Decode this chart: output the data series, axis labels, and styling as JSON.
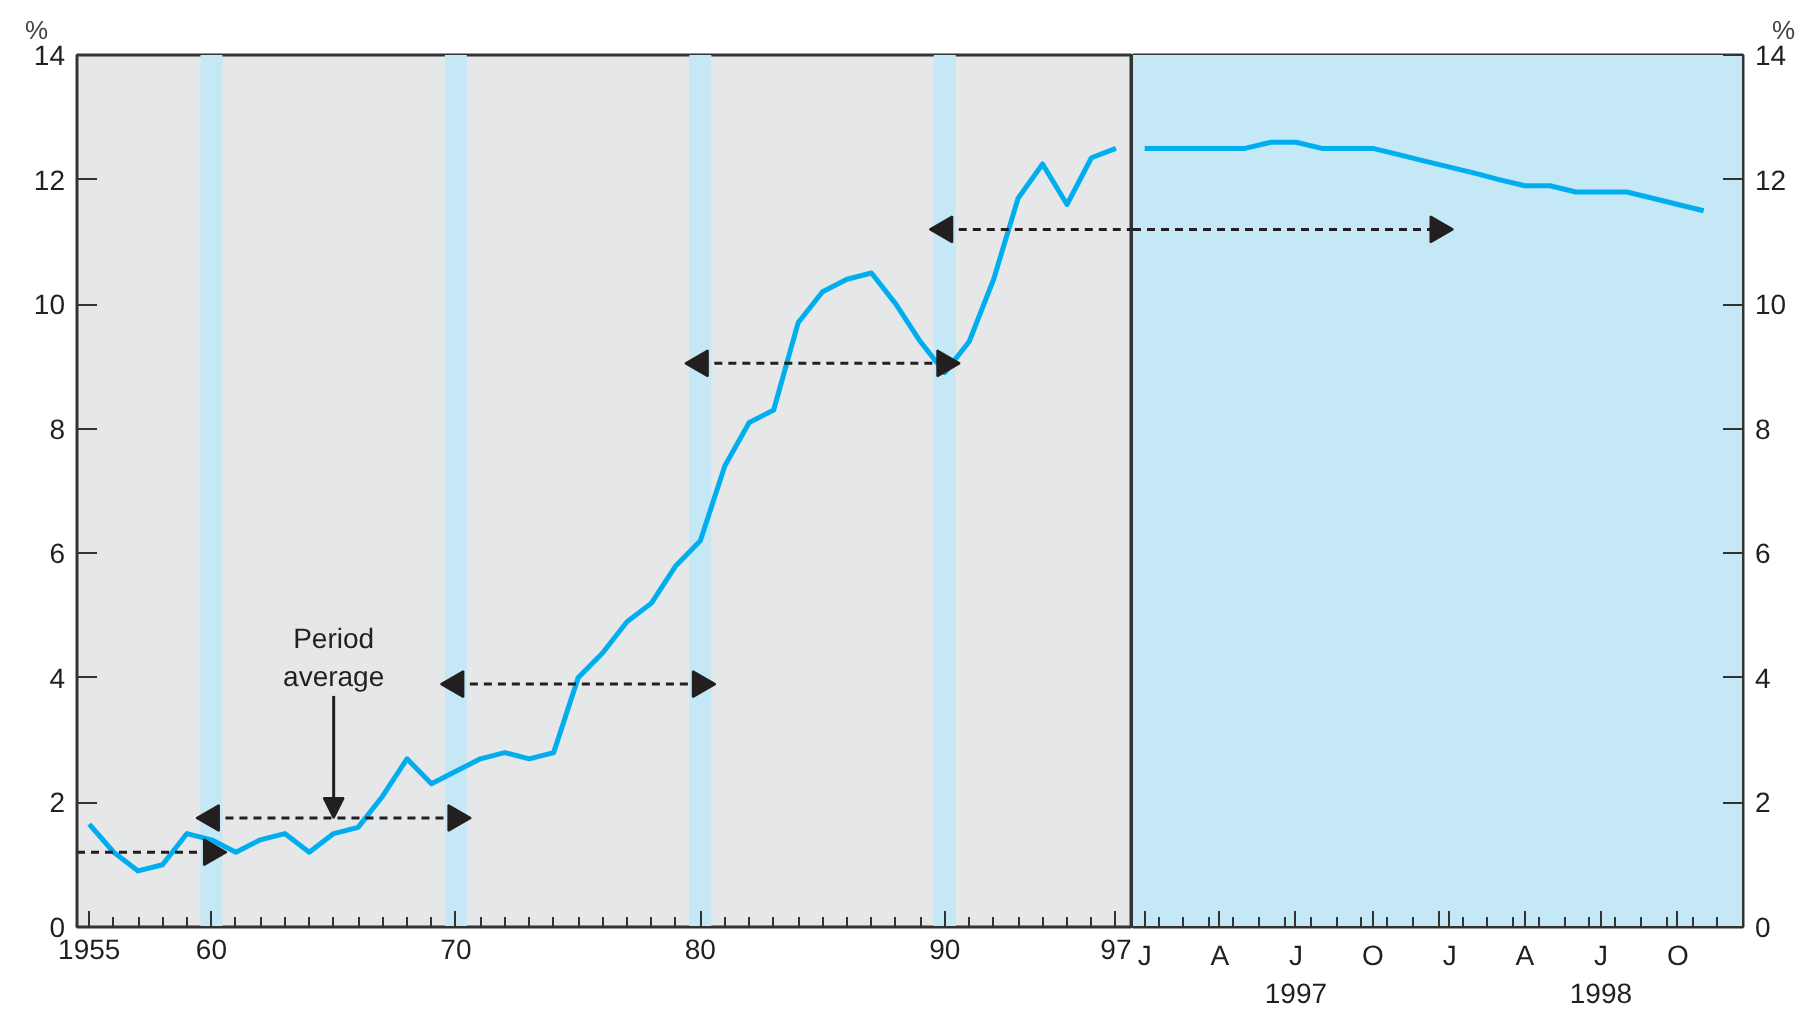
{
  "chart_data": [
    {
      "type": "line",
      "ylabel": "%",
      "x": [
        1955,
        1956,
        1957,
        1958,
        1959,
        1960,
        1961,
        1962,
        1963,
        1964,
        1965,
        1966,
        1967,
        1968,
        1969,
        1970,
        1971,
        1972,
        1973,
        1974,
        1975,
        1976,
        1977,
        1978,
        1979,
        1980,
        1981,
        1982,
        1983,
        1984,
        1985,
        1986,
        1987,
        1988,
        1989,
        1990,
        1991,
        1992,
        1993,
        1994,
        1995,
        1996,
        1997
      ],
      "series": [
        {
          "color": "#00aeef",
          "values": [
            1.65,
            1.2,
            0.9,
            1.0,
            1.5,
            1.4,
            1.2,
            1.4,
            1.5,
            1.2,
            1.5,
            1.6,
            2.1,
            2.7,
            2.3,
            2.5,
            2.7,
            2.8,
            2.7,
            2.8,
            4.0,
            4.4,
            4.9,
            5.2,
            5.8,
            6.2,
            7.4,
            8.1,
            8.3,
            9.7,
            10.2,
            10.4,
            10.5,
            10.0,
            9.4,
            8.9,
            9.4,
            10.4,
            11.7,
            12.25,
            11.6,
            12.35,
            12.5
          ]
        },
        {
          "color": "#231f20",
          "line_style": "dashed",
          "marker": "triangle",
          "x": [
            1954.5,
            1960
          ],
          "values": [
            1.2,
            1.2
          ]
        },
        {
          "color": "#231f20",
          "line_style": "dashed",
          "marker": "triangle",
          "x": [
            1960,
            1970
          ],
          "values": [
            1.75,
            1.75
          ]
        },
        {
          "color": "#231f20",
          "line_style": "dashed",
          "marker": "triangle",
          "x": [
            1970,
            1980
          ],
          "values": [
            3.9,
            3.9
          ]
        },
        {
          "color": "#231f20",
          "line_style": "dashed",
          "marker": "triangle",
          "x": [
            1980,
            1990
          ],
          "values": [
            9.05,
            9.05
          ]
        },
        {
          "color": "#231f20",
          "line_style": "dashed",
          "marker": "triangle",
          "x": [
            1990,
            1997.7
          ],
          "values": [
            11.2,
            11.2
          ]
        }
      ],
      "xlim": [
        1954.5,
        1997.7
      ],
      "ylim": [
        0,
        14
      ],
      "xticks": [
        1955,
        {
          "value": 1960,
          "label": "60"
        },
        {
          "value": 1970,
          "label": "70"
        },
        {
          "value": 1980,
          "label": "80"
        },
        {
          "value": 1990,
          "label": "90"
        },
        {
          "value": 1997,
          "label": "97"
        }
      ],
      "yticks": [
        0,
        2,
        4,
        6,
        8,
        10,
        12,
        14
      ],
      "bands": [
        {
          "axis": "x",
          "from": 1959.55,
          "to": 1960.45,
          "color": "#c5e8f7"
        },
        {
          "axis": "x",
          "from": 1969.55,
          "to": 1970.45,
          "color": "#c5e8f7"
        },
        {
          "axis": "x",
          "from": 1979.55,
          "to": 1980.45,
          "color": "#c5e8f7"
        },
        {
          "axis": "x",
          "from": 1989.55,
          "to": 1990.45,
          "color": "#c5e8f7"
        }
      ],
      "annotations": [
        {
          "text": "Period\naverage",
          "x": 1965,
          "y": 1.75
        }
      ],
      "grid": false,
      "marker": "none",
      "line_style": "solid"
    },
    {
      "type": "line",
      "ylabel": "%",
      "x": [
        "1997-01-15",
        "1997-02-15",
        "1997-03-15",
        "1997-04-15",
        "1997-05-15",
        "1997-06-15",
        "1997-07-15",
        "1997-08-15",
        "1997-09-15",
        "1997-10-15",
        "1997-11-15",
        "1997-12-15",
        "1998-01-15",
        "1998-02-15",
        "1998-03-15",
        "1998-04-15",
        "1998-05-15",
        "1998-06-15",
        "1998-07-15",
        "1998-08-15",
        "1998-09-15",
        "1998-10-15",
        "1998-11-15"
      ],
      "series": [
        {
          "color": "#00aeef",
          "values": [
            12.5,
            12.5,
            12.5,
            12.5,
            12.5,
            12.6,
            12.6,
            12.5,
            12.5,
            12.5,
            12.4,
            12.3,
            12.2,
            12.1,
            12.0,
            11.9,
            11.9,
            11.8,
            11.8,
            11.8,
            11.7,
            11.6,
            11.5
          ]
        },
        {
          "color": "#231f20",
          "line_style": "dashed",
          "marker": "triangle",
          "x": [
            "1997-01-01",
            "1998-01-01"
          ],
          "values": [
            11.2,
            11.2
          ]
        }
      ],
      "xlim": [
        "1997-01-01",
        "1999-01-01"
      ],
      "ylim": [
        0,
        14
      ],
      "xticks": [
        {
          "value": "1997-01-15",
          "label": "J"
        },
        {
          "value": "1997-04-15",
          "label": "A"
        },
        {
          "value": "1997-07-15",
          "label": "J\n1997"
        },
        {
          "value": "1997-10-15",
          "label": "O"
        },
        {
          "value": "1998-01-01",
          "label": null
        },
        {
          "value": "1998-01-15",
          "label": "J"
        },
        {
          "value": "1998-04-15",
          "label": "A"
        },
        {
          "value": "1998-07-15",
          "label": "J\n1998"
        },
        {
          "value": "1998-10-15",
          "label": "O"
        }
      ],
      "yticks": [
        0,
        2,
        4,
        6,
        8,
        10,
        12,
        14
      ],
      "bands": [
        {
          "axis": "x",
          "from": "1997-01-01",
          "to": "1999-01-01",
          "color": "#c5e8f7"
        }
      ],
      "grid": false,
      "marker": "none",
      "line_style": "solid"
    }
  ]
}
